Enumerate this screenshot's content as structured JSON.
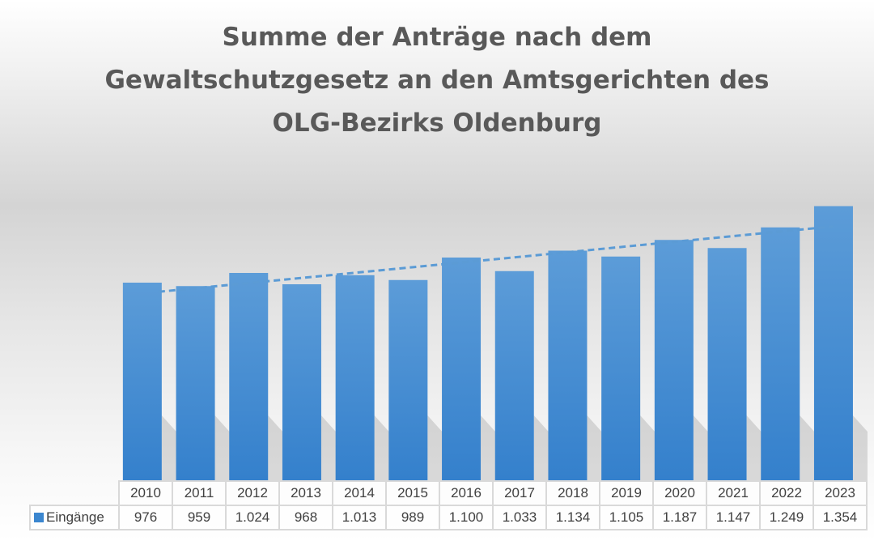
{
  "chart_data": {
    "type": "bar",
    "title_lines": [
      "Summe der Anträge nach dem",
      "Gewaltschutzgesetz an den Amtsgerichten des",
      "OLG-Bezirks Oldenburg"
    ],
    "categories": [
      "2010",
      "2011",
      "2012",
      "2013",
      "2014",
      "2015",
      "2016",
      "2017",
      "2018",
      "2019",
      "2020",
      "2021",
      "2022",
      "2023"
    ],
    "series": [
      {
        "name": "Eingänge",
        "values": [
          976,
          959,
          1024,
          968,
          1013,
          989,
          1100,
          1033,
          1134,
          1105,
          1187,
          1147,
          1249,
          1354
        ],
        "labels": [
          "976",
          "959",
          "1.024",
          "968",
          "1.013",
          "989",
          "1.100",
          "1.033",
          "1.134",
          "1.105",
          "1.187",
          "1.147",
          "1.249",
          "1.354"
        ]
      }
    ],
    "trendline": "linear",
    "ylim": [
      0,
      1600
    ],
    "grid": false,
    "legend": "data-table",
    "colors": {
      "bar": "#3b86cf",
      "bar_top": "#5a9ad6",
      "trend": "#5b9bd5"
    }
  }
}
